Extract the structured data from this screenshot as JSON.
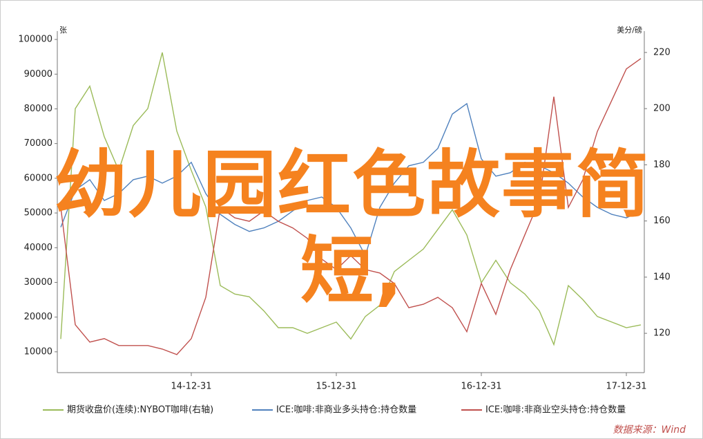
{
  "chart_data": {
    "type": "line",
    "overlay_text": "幼儿园红色故事简短,",
    "y_label": "张",
    "y2_label": "美分/磅",
    "source": "数据来源：Wind",
    "categories": [
      null,
      null,
      null,
      null,
      null,
      null,
      null,
      null,
      null,
      "14-12-31",
      null,
      null,
      null,
      null,
      null,
      null,
      null,
      null,
      null,
      "15-12-31",
      null,
      null,
      null,
      null,
      null,
      null,
      null,
      null,
      null,
      "16-12-31",
      null,
      null,
      null,
      null,
      null,
      null,
      null,
      null,
      null,
      "17-12-31",
      null
    ],
    "ylim": [
      4000,
      102400
    ],
    "yticks": [
      10000,
      20000,
      30000,
      40000,
      50000,
      60000,
      70000,
      80000,
      90000,
      100000
    ],
    "y2lim": [
      106,
      227.6
    ],
    "y2ticks": [
      120,
      140,
      160,
      180,
      200,
      220
    ],
    "series": [
      {
        "name": "期货收盘价(连续):NYBOT咖啡(右轴)",
        "color": "#9bbb59",
        "axis": "y2",
        "values": [
          118,
          200,
          208,
          190,
          178,
          194,
          200,
          220,
          192,
          178,
          165,
          137,
          134,
          133,
          128,
          122,
          122,
          120,
          122,
          124,
          118,
          126,
          130,
          142,
          146,
          150,
          157,
          164,
          155,
          138,
          146,
          138,
          134,
          128,
          116,
          137,
          132,
          126,
          124,
          122,
          123
        ]
      },
      {
        "name": "ICE:咖啡:非商业多头持仓:持仓数量",
        "color": "#4f81bd",
        "values": [
          45900,
          56600,
          59600,
          53600,
          55600,
          59600,
          60600,
          58600,
          60600,
          64600,
          55600,
          49600,
          46700,
          44700,
          45700,
          47600,
          50600,
          53600,
          54600,
          51600,
          45700,
          37700,
          51600,
          58600,
          63600,
          64600,
          68600,
          78500,
          81500,
          65600,
          60600,
          61600,
          64600,
          63600,
          61600,
          58600,
          54600,
          51600,
          49600,
          48600,
          50600
        ]
      },
      {
        "name": "ICE:咖啡:非商业空头持仓:持仓数量",
        "color": "#c0504d",
        "values": [
          51600,
          17800,
          12800,
          13800,
          11800,
          11800,
          11800,
          10800,
          9200,
          13800,
          25700,
          51600,
          48600,
          47600,
          50600,
          47600,
          45700,
          42700,
          36700,
          33700,
          37700,
          33700,
          32700,
          29700,
          22700,
          23700,
          25700,
          22700,
          15800,
          29700,
          20800,
          33700,
          43700,
          53600,
          83500,
          51600,
          59600,
          73500,
          82500,
          91500,
          94500
        ]
      }
    ]
  }
}
